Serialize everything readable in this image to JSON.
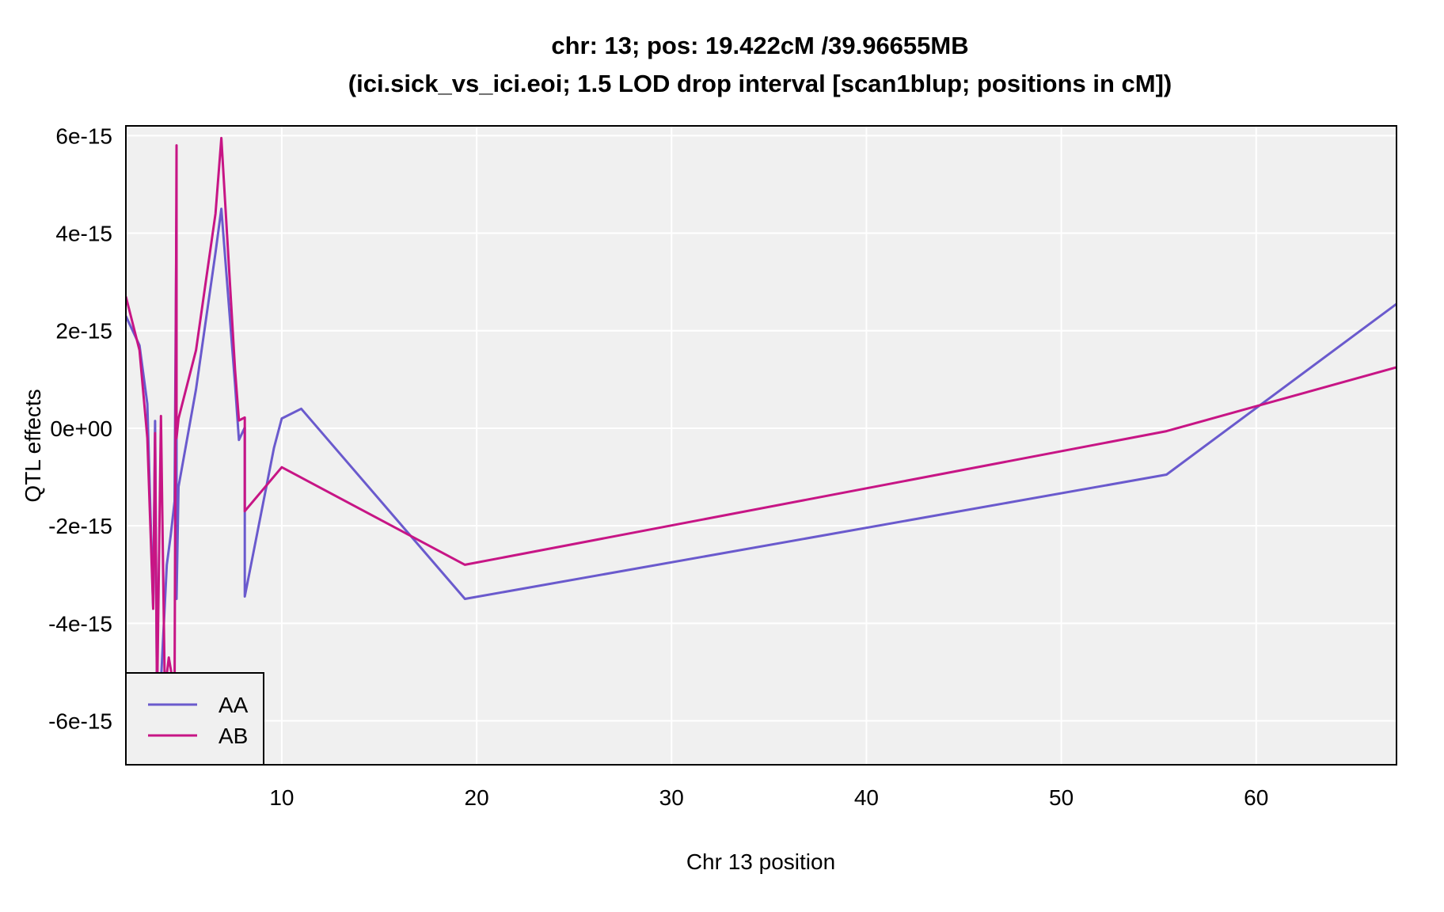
{
  "chart_data": {
    "type": "line",
    "title": "chr: 13; pos: 19.422cM /39.96655MB",
    "subtitle": "(ici.sick_vs_ici.eoi; 1.5 LOD drop interval [scan1blup; positions in cM])",
    "xlabel": "Chr 13 position",
    "ylabel": "QTL effects",
    "xlim": [
      2.0,
      67.2
    ],
    "ylim": [
      -6.9e-15,
      6.2e-15
    ],
    "xticks": [
      10,
      20,
      30,
      40,
      50,
      60
    ],
    "xtick_labels": [
      "10",
      "20",
      "30",
      "40",
      "50",
      "60"
    ],
    "yticks": [
      6e-15,
      4e-15,
      2e-15,
      0,
      -2e-15,
      -4e-15,
      -6e-15
    ],
    "ytick_labels": [
      "6e-15",
      "4e-15",
      "2e-15",
      "0e+00",
      "-2e-15",
      "-4e-15",
      "-6e-15"
    ],
    "grid": true,
    "legend_position": "bottom-left",
    "colors": {
      "background": "#f0f0f0",
      "grid": "#ffffff",
      "AA": "#6a5acd",
      "AB": "#c71585"
    },
    "series": [
      {
        "name": "AA",
        "x": [
          2.0,
          2.7,
          3.1,
          3.4,
          3.5,
          3.6,
          3.8,
          4.1,
          4.3,
          4.5,
          4.6,
          4.6,
          4.7,
          5.6,
          6.6,
          6.9,
          7.6,
          7.8,
          8.1,
          8.1,
          9.6,
          10.0,
          11.0,
          19.4,
          55.4,
          67.2
        ],
        "y": [
          2.3e-15,
          1.7e-15,
          5e-16,
          -3.7e-15,
          1.5e-16,
          -5.8e-15,
          -5.2e-15,
          -2.8e-15,
          -2.2e-15,
          -1.5e-15,
          4.6e-15,
          -3.5e-15,
          -1.2e-15,
          8e-16,
          3.6e-15,
          4.5e-15,
          9e-16,
          -2.4e-16,
          1.6e-17,
          -3.45e-15,
          -4e-16,
          2e-16,
          4e-16,
          -3.5e-15,
          -9.5e-16,
          2.55e-15
        ]
      },
      {
        "name": "AB",
        "x": [
          2.0,
          2.7,
          3.1,
          3.4,
          3.5,
          3.6,
          3.8,
          4.0,
          4.2,
          4.5,
          4.6,
          4.6,
          4.7,
          5.6,
          6.6,
          6.9,
          7.6,
          7.8,
          8.1,
          8.1,
          10.0,
          19.4,
          55.4,
          67.2
        ],
        "y": [
          2.7e-15,
          1.6e-15,
          -2e-16,
          -3.7e-15,
          -1e-16,
          -5.6e-15,
          2.5e-16,
          -5.4e-15,
          -4.7e-15,
          -5.4e-15,
          5.8e-15,
          -2e-16,
          2e-16,
          1.6e-15,
          4.4e-15,
          5.95e-15,
          1.2e-15,
          1.6e-16,
          2.2e-16,
          -1.7e-15,
          -8e-16,
          -2.8e-15,
          -6e-17,
          1.25e-15
        ]
      }
    ]
  }
}
